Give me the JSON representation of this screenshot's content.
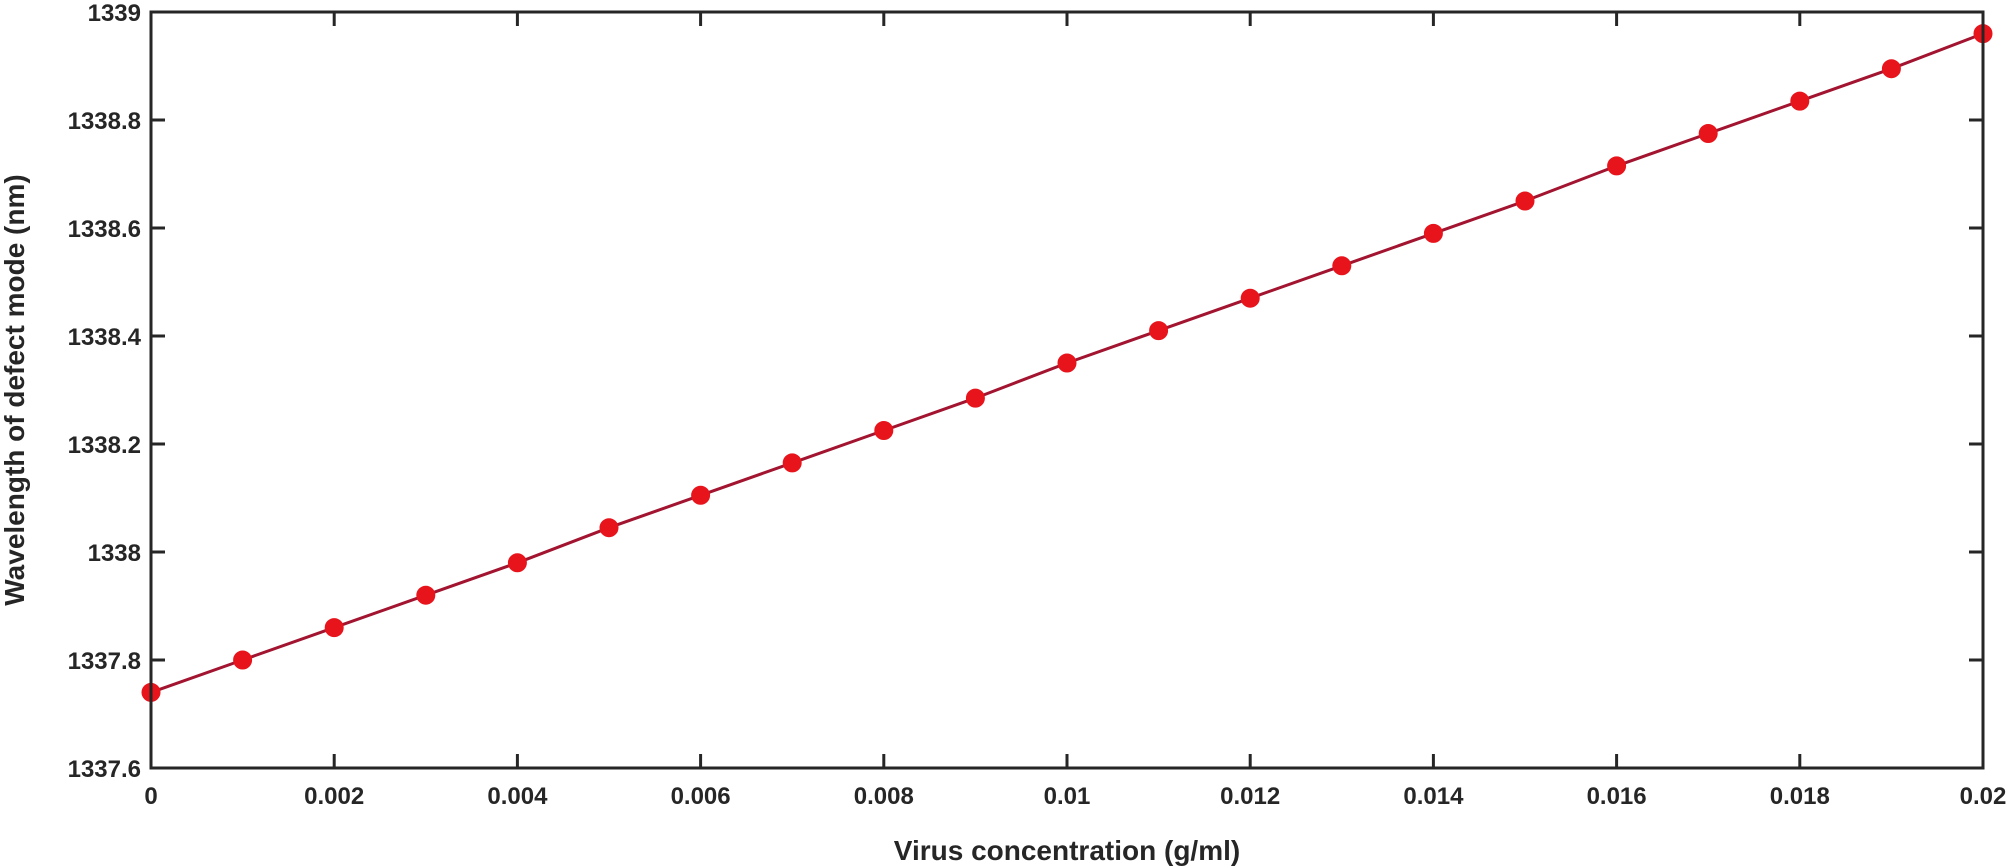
{
  "chart_data": {
    "type": "line",
    "title": "",
    "xlabel": "Virus concentration (g/ml)",
    "ylabel": "Wavelength of defect mode (nm)",
    "xlim": [
      0,
      0.02
    ],
    "ylim": [
      1337.6,
      1339
    ],
    "xticks": [
      0,
      0.002,
      0.004,
      0.006,
      0.008,
      0.01,
      0.012,
      0.014,
      0.016,
      0.018,
      0.02
    ],
    "xtick_labels": [
      "0",
      "0.002",
      "0.004",
      "0.006",
      "0.008",
      "0.01",
      "0.012",
      "0.014",
      "0.016",
      "0.018",
      "0.02"
    ],
    "yticks": [
      1337.6,
      1337.8,
      1338,
      1338.2,
      1338.4,
      1338.6,
      1338.8,
      1339
    ],
    "ytick_labels": [
      "1337.6",
      "1337.8",
      "1338",
      "1338.2",
      "1338.4",
      "1338.6",
      "1338.8",
      "1339"
    ],
    "grid": false,
    "legend": "none",
    "series": [
      {
        "line_color": "#A2142F",
        "marker_color": "#E8141C",
        "marker": "circle",
        "x": [
          0,
          0.001,
          0.002,
          0.003,
          0.004,
          0.005,
          0.006,
          0.007,
          0.008,
          0.009,
          0.01,
          0.011,
          0.012,
          0.013,
          0.014,
          0.015,
          0.016,
          0.017,
          0.018,
          0.019,
          0.02
        ],
        "y": [
          1337.74,
          1337.8,
          1337.86,
          1337.92,
          1337.98,
          1338.045,
          1338.105,
          1338.165,
          1338.225,
          1338.285,
          1338.35,
          1338.41,
          1338.47,
          1338.53,
          1338.59,
          1338.65,
          1338.715,
          1338.775,
          1338.835,
          1338.895,
          1338.96
        ]
      }
    ]
  }
}
